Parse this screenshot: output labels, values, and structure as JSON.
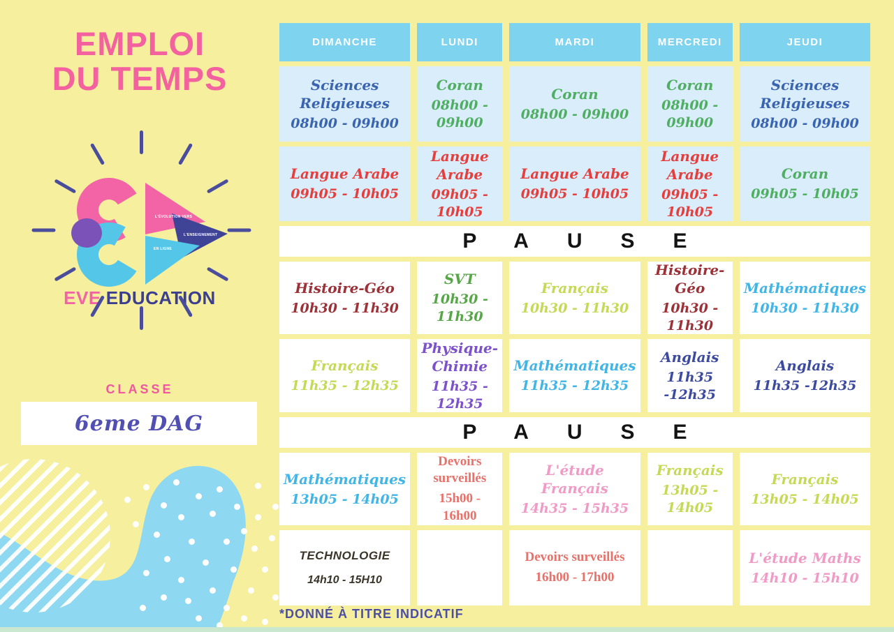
{
  "header": {
    "title_line1": "EMPLOI",
    "title_line2": "DU TEMPS"
  },
  "logo": {
    "brand_first": "EVE",
    "brand_second": "EDUCATION",
    "triangle_labels": [
      "L'ÉVOLUTION VERS",
      "L'ENSEIGNEMENT",
      "EN LIGNE"
    ]
  },
  "classe": {
    "label": "CLASSE",
    "value": "6eme DAG"
  },
  "footnote": "*DONNÉ À TITRE INDICATIF",
  "colors": {
    "background_yellow": "#f5ef9e",
    "header_blue": "#7ed3ee",
    "cell_light_blue": "#d9edfb",
    "cell_white": "#ffffff",
    "title_pink": "#f4619f",
    "note_navy": "#4b4ea3",
    "blob_blue": "#8ed8f2",
    "bottom_strip_green": "#c9e8cf",
    "logo_pink": "#f264a5",
    "logo_cyan": "#54c7e8",
    "logo_navy": "#3f4496",
    "logo_purple": "#7a52b8"
  },
  "timetable": {
    "days": [
      "DIMANCHE",
      "LUNDI",
      "MARDI",
      "MERCREDI",
      "JEUDI"
    ],
    "pause_label": "PAUSE",
    "rows": [
      {
        "section": "morning",
        "cells": [
          {
            "subject": "Sciences Religieuses",
            "time": "08h00 - 09h00",
            "color": "#3a64b0",
            "style": "script"
          },
          {
            "subject": "Coran",
            "time": "08h00 - 09h00",
            "color": "#4fae62",
            "style": "script"
          },
          {
            "subject": "Coran",
            "time": "08h00 - 09h00",
            "color": "#4fae62",
            "style": "script"
          },
          {
            "subject": "Coran",
            "time": "08h00 - 09h00",
            "color": "#4fae62",
            "style": "script"
          },
          {
            "subject": "Sciences Religieuses",
            "time": "08h00 - 09h00",
            "color": "#3a64b0",
            "style": "script"
          }
        ]
      },
      {
        "section": "morning",
        "cells": [
          {
            "subject": "Langue Arabe",
            "time": "09h05 - 10h05",
            "color": "#e53e3c",
            "style": "script"
          },
          {
            "subject": "Langue Arabe",
            "time": "09h05 - 10h05",
            "color": "#e53e3c",
            "style": "script"
          },
          {
            "subject": "Langue Arabe",
            "time": "09h05 - 10h05",
            "color": "#e53e3c",
            "style": "script"
          },
          {
            "subject": "Langue Arabe",
            "time": "09h05 - 10h05",
            "color": "#e53e3c",
            "style": "script"
          },
          {
            "subject": "Coran",
            "time": "09h05 - 10h05",
            "color": "#4fae62",
            "style": "script"
          }
        ]
      },
      {
        "pause": true
      },
      {
        "section": "day",
        "cells": [
          {
            "subject": "Histoire-Géo",
            "time": "10h30 - 11h30",
            "color": "#9c3138",
            "style": "script"
          },
          {
            "subject": "SVT",
            "time": "10h30 - 11h30",
            "color": "#57a648",
            "style": "script"
          },
          {
            "subject": "Français",
            "time": "10h30 - 11h30",
            "color": "#c6d957",
            "style": "script"
          },
          {
            "subject": "Histoire-Géo",
            "time": "10h30 - 11h30",
            "color": "#9c3138",
            "style": "script"
          },
          {
            "subject": "Mathématiques",
            "time": "10h30 - 11h30",
            "color": "#41b5e6",
            "style": "script"
          }
        ]
      },
      {
        "section": "day",
        "cells": [
          {
            "subject": "Français",
            "time": "11h35 - 12h35",
            "color": "#c6d957",
            "style": "script"
          },
          {
            "subject": "Physique-Chimie",
            "time": "11h35 - 12h35",
            "color": "#7b51cc",
            "style": "script"
          },
          {
            "subject": "Mathématiques",
            "time": "11h35 - 12h35",
            "color": "#41b5e6",
            "style": "script"
          },
          {
            "subject": "Anglais",
            "time": "11h35 -12h35",
            "color": "#3c4ba0",
            "style": "script"
          },
          {
            "subject": "Anglais",
            "time": "11h35 -12h35",
            "color": "#3c4ba0",
            "style": "script"
          }
        ]
      },
      {
        "pause": true
      },
      {
        "section": "day",
        "cells": [
          {
            "subject": "Mathématiques",
            "time": "13h05 - 14h05",
            "color": "#41b5e6",
            "style": "script"
          },
          {
            "subject": "Devoirs surveillés",
            "time": "15h00 - 16h00",
            "color": "#e8716a",
            "style": "serif"
          },
          {
            "subject": "L'étude Français",
            "time": "14h35 - 15h35",
            "color": "#f09ac6",
            "style": "script"
          },
          {
            "subject": "Français",
            "time": "13h05 - 14h05",
            "color": "#c6d957",
            "style": "script"
          },
          {
            "subject": "Français",
            "time": "13h05 - 14h05",
            "color": "#c6d957",
            "style": "script"
          }
        ]
      },
      {
        "section": "day",
        "cells": [
          {
            "subject": "TECHNOLOGIE",
            "time": "14h10 - 15H10",
            "color": "#3a3528",
            "style": "tech"
          },
          {
            "subject": "",
            "time": "",
            "color": "",
            "style": "script",
            "empty": true
          },
          {
            "subject": "Devoirs surveillés",
            "time": "16h00 - 17h00",
            "color": "#e8716a",
            "style": "serif"
          },
          {
            "subject": "",
            "time": "",
            "color": "",
            "style": "script",
            "empty": true
          },
          {
            "subject": "L'étude Maths",
            "time": "14h10 - 15h10",
            "color": "#f09ac6",
            "style": "script"
          }
        ]
      }
    ]
  }
}
